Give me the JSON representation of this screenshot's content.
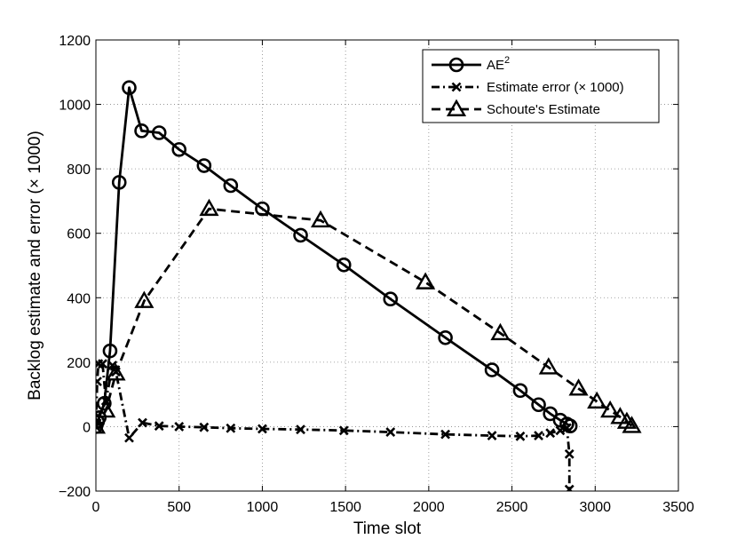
{
  "chart_data": {
    "type": "line",
    "xlabel": "Time slot",
    "ylabel": "Backlog estimate and error (× 1000)",
    "xlim": [
      0,
      3500
    ],
    "ylim": [
      -200,
      1200
    ],
    "xticks": [
      0,
      500,
      1000,
      1500,
      2000,
      2500,
      3000,
      3500
    ],
    "yticks": [
      -200,
      0,
      200,
      400,
      600,
      800,
      1000,
      1200
    ],
    "xtick_labels": [
      "0",
      "500",
      "1000",
      "1500",
      "2000",
      "2500",
      "3000",
      "3500"
    ],
    "ytick_labels": [
      "−200",
      "0",
      "200",
      "400",
      "600",
      "800",
      "1000",
      "1200"
    ],
    "grid": true,
    "legend_position": "top-right",
    "series": [
      {
        "name": "AE",
        "name_superscript": "2",
        "line": "solid",
        "marker": "circle",
        "color": "#000000",
        "points": [
          [
            0,
            0
          ],
          [
            10,
            15
          ],
          [
            20,
            28
          ],
          [
            50,
            72
          ],
          [
            85,
            235
          ],
          [
            140,
            758
          ],
          [
            200,
            1052
          ],
          [
            275,
            918
          ],
          [
            380,
            912
          ],
          [
            500,
            860
          ],
          [
            650,
            810
          ],
          [
            810,
            748
          ],
          [
            1000,
            676
          ],
          [
            1230,
            594
          ],
          [
            1490,
            502
          ],
          [
            1770,
            396
          ],
          [
            2100,
            276
          ],
          [
            2380,
            176
          ],
          [
            2550,
            112
          ],
          [
            2660,
            68
          ],
          [
            2730,
            40
          ],
          [
            2790,
            20
          ],
          [
            2830,
            8
          ],
          [
            2850,
            2
          ]
        ]
      },
      {
        "name": "Estimate error (× 1000)",
        "line": "dashdot",
        "marker": "x",
        "color": "#000000",
        "points": [
          [
            0,
            0
          ],
          [
            8,
            140
          ],
          [
            15,
            195
          ],
          [
            40,
            195
          ],
          [
            60,
            80
          ],
          [
            100,
            190
          ],
          [
            120,
            170
          ],
          [
            200,
            -35
          ],
          [
            280,
            12
          ],
          [
            380,
            2
          ],
          [
            500,
            0
          ],
          [
            650,
            -2
          ],
          [
            810,
            -5
          ],
          [
            1000,
            -7
          ],
          [
            1230,
            -9
          ],
          [
            1490,
            -12
          ],
          [
            1770,
            -17
          ],
          [
            2100,
            -24
          ],
          [
            2380,
            -28
          ],
          [
            2550,
            -30
          ],
          [
            2660,
            -28
          ],
          [
            2730,
            -20
          ],
          [
            2790,
            -12
          ],
          [
            2830,
            -4
          ],
          [
            2845,
            -85
          ],
          [
            2845,
            -195
          ]
        ]
      },
      {
        "name": "Schoute's Estimate",
        "line": "dashed",
        "marker": "triangle",
        "color": "#000000",
        "points": [
          [
            0,
            0
          ],
          [
            60,
            50
          ],
          [
            120,
            165
          ],
          [
            290,
            390
          ],
          [
            680,
            676
          ],
          [
            1350,
            640
          ],
          [
            1980,
            448
          ],
          [
            2430,
            290
          ],
          [
            2720,
            184
          ],
          [
            2900,
            118
          ],
          [
            3010,
            78
          ],
          [
            3090,
            50
          ],
          [
            3150,
            30
          ],
          [
            3190,
            15
          ],
          [
            3220,
            2
          ]
        ]
      }
    ]
  }
}
